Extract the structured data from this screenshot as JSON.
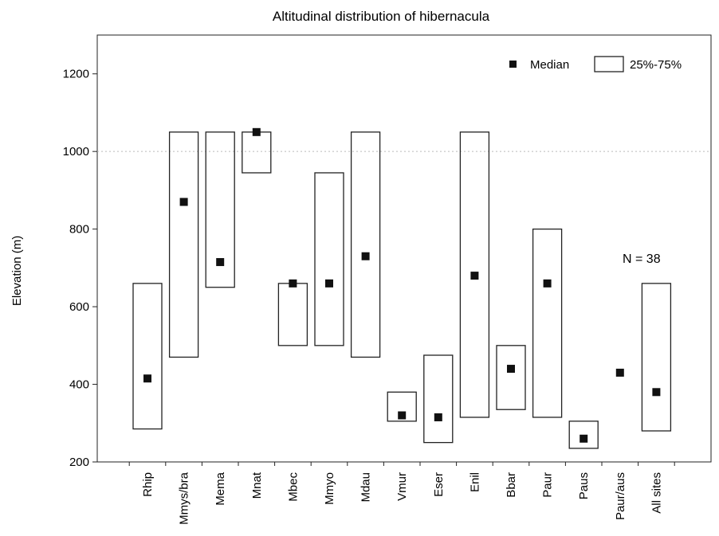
{
  "chart_data": {
    "type": "box",
    "title": "Altitudinal distribution of hibernacula",
    "xlabel": "",
    "ylabel": "Elevation (m)",
    "ylim": [
      200,
      1300
    ],
    "yticks": [
      200,
      400,
      600,
      800,
      1000,
      1200
    ],
    "grid": "dotted line at 1000",
    "legend": {
      "position": "top-right",
      "items": [
        {
          "label": "Median",
          "marker": "square"
        },
        {
          "label": "25%-75%",
          "marker": "box"
        }
      ]
    },
    "annotation": "N = 38",
    "categories": [
      "Rhip",
      "Mmys/bra",
      "Mema",
      "Mnat",
      "Mbec",
      "Mmyo",
      "Mdau",
      "Vmur",
      "Eser",
      "Enil",
      "Bbar",
      "Paur",
      "Paus",
      "Paur/aus",
      "All sites"
    ],
    "series": [
      {
        "name": "Median",
        "values": [
          415,
          870,
          715,
          1050,
          660,
          660,
          730,
          320,
          315,
          680,
          440,
          660,
          260,
          430,
          380
        ]
      },
      {
        "name": "25%-75%",
        "q1": [
          285,
          470,
          650,
          945,
          500,
          500,
          470,
          305,
          250,
          315,
          335,
          315,
          235,
          null,
          280
        ],
        "q3": [
          660,
          1050,
          1050,
          1050,
          660,
          945,
          1050,
          380,
          475,
          1050,
          500,
          800,
          305,
          null,
          660
        ]
      }
    ]
  },
  "colors": {
    "box_stroke": "#222222",
    "median": "#111111",
    "grid": "#bbbbbb"
  }
}
